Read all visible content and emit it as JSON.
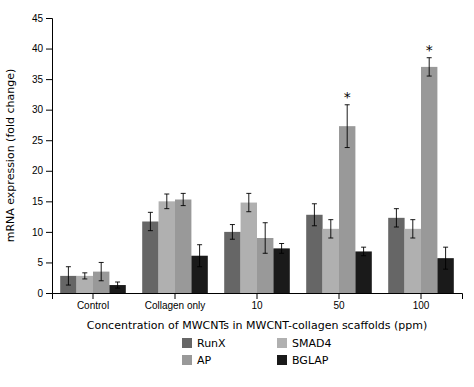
{
  "chart_data": {
    "type": "bar",
    "categories": [
      "Control",
      "Collagen only",
      "10",
      "50",
      "100"
    ],
    "series": [
      {
        "name": "RunX",
        "color": "#666666",
        "values": [
          2.8,
          11.7,
          10.0,
          12.8,
          12.3
        ],
        "errors": [
          1.5,
          1.5,
          1.2,
          1.8,
          1.5
        ]
      },
      {
        "name": "SMAD4",
        "color": "#b0b0b0",
        "values": [
          2.8,
          15.0,
          14.8,
          10.5,
          10.5
        ],
        "errors": [
          0.5,
          1.2,
          1.5,
          1.5,
          1.5
        ]
      },
      {
        "name": "AP",
        "color": "#999999",
        "values": [
          3.5,
          15.3,
          9.0,
          27.3,
          37.0
        ],
        "errors": [
          1.5,
          1.0,
          2.5,
          3.5,
          1.5
        ]
      },
      {
        "name": "BGLAP",
        "color": "#1a1a1a",
        "values": [
          1.3,
          6.1,
          7.3,
          6.8,
          5.7
        ],
        "errors": [
          0.5,
          1.8,
          0.8,
          0.7,
          1.8
        ]
      }
    ],
    "xlabel": "Concentration of MWCNTs in MWCNT-collagen scaffolds (ppm)",
    "ylabel": "mRNA expression (fold change)",
    "ylim": [
      0,
      45
    ],
    "yticks": [
      0,
      5,
      10,
      15,
      20,
      25,
      30,
      35,
      40,
      45
    ],
    "annotations": [
      {
        "text": "*",
        "series": "AP",
        "category": "50"
      },
      {
        "text": "*",
        "series": "AP",
        "category": "100"
      }
    ],
    "grid": false,
    "legend": "bottom"
  }
}
